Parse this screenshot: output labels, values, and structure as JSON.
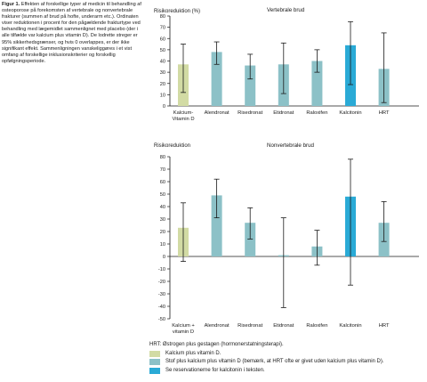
{
  "caption": {
    "label": "Figur 1.",
    "text": "Effekten af forskellige typer af medicin til behandling af osteoporose på forekomsten af vertebrale og nonvertebrale frakturer (summen af brud på hofte, underarm etc.). Ordinaten viser reduktionen i procent for den pågældende frakturtype ved behandling med lægemidlet sammenlignet med placebo (der i alle tilfælde var kalcium plus vitamin D). De lodrette streger er 95% sikkerhedsgrænser, og hvis 0 overlappes, er der ikke signifikant effekt. Sammenligningen vanskeliggøres i et vist omfang af forskellige inklusionskriterier og forskellig opfølgningsperiode."
  },
  "colors": {
    "calcium": "#d2dba4",
    "drug": "#8cc1c7",
    "calcitonin": "#2aaad6",
    "errorbar": "#1a1a1a",
    "axis": "#1a1a1a"
  },
  "chart_data": [
    {
      "type": "bar",
      "title": "Vertebrale brud",
      "ylabel": "Risikoreduktion (%)",
      "ylim": [
        0,
        80
      ],
      "yticks": [
        "0",
        "10",
        "20",
        "30",
        "40",
        "50",
        "60",
        "70",
        "80"
      ],
      "categories": [
        "Kalcium-\nVitamin D",
        "Alendronat",
        "Risedronat",
        "Etidronat",
        "Raloxifen",
        "Kalcitonin",
        "HRT"
      ],
      "values": [
        37,
        48,
        36,
        37,
        40,
        54,
        33
      ],
      "ci_low": [
        12,
        37,
        24,
        11,
        30,
        19,
        3
      ],
      "ci_high": [
        55,
        57,
        46,
        56,
        50,
        75,
        65
      ],
      "color_groups": [
        "calcium",
        "drug",
        "drug",
        "drug",
        "drug",
        "calcitonin",
        "drug"
      ]
    },
    {
      "type": "bar",
      "title": "Nonvertebrale brud",
      "ylabel": "Risikoreduktion",
      "ylim": [
        -50,
        80
      ],
      "yticks": [
        "-50",
        "-40",
        "-30",
        "-20",
        "-10",
        "0",
        "10",
        "20",
        "30",
        "40",
        "50",
        "60",
        "70",
        "80"
      ],
      "categories": [
        "Kalcium +\nvitamin D",
        "Alendronat",
        "Risedronat",
        "Etidronat",
        "Raloxifen",
        "Kalcitonin",
        "HRT"
      ],
      "values": [
        23,
        49,
        27,
        1,
        8,
        48,
        27
      ],
      "ci_low": [
        -4,
        31,
        14,
        -41,
        -7,
        -23,
        12
      ],
      "ci_high": [
        43,
        62,
        39,
        31,
        21,
        78,
        44
      ],
      "color_groups": [
        "calcium",
        "drug",
        "drug",
        "drug",
        "drug",
        "calcitonin",
        "drug"
      ]
    }
  ],
  "legend": {
    "heading": "HRT: Østrogen plus gestagen (hormonerstatningsterapi).",
    "items": [
      {
        "label": "Kalcium plus vitamin D.",
        "color_key": "calcium"
      },
      {
        "label": "Stof plus kalcium plus vitamin D (bemærk, at HRT ofte er givet uden kalcium plus vitamin D).",
        "color_key": "drug"
      },
      {
        "label": "Se reservationerne for kalcitonin i teksten.",
        "color_key": "calcitonin"
      }
    ]
  }
}
